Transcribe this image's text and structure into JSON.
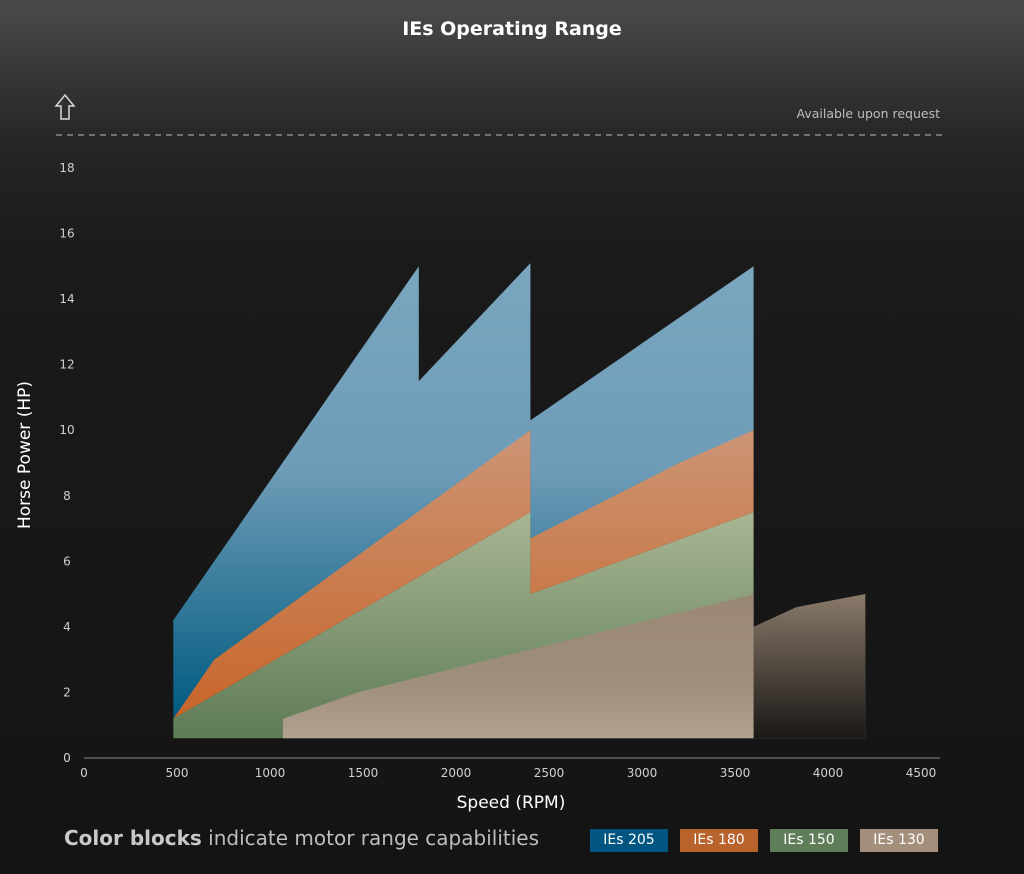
{
  "chart_data": {
    "type": "area",
    "title": "IEs Operating Range",
    "xlabel": "Speed (RPM)",
    "ylabel": "Horse Power (HP)",
    "xlim": [
      0,
      4500
    ],
    "ylim": [
      0,
      18
    ],
    "xticks": [
      0,
      500,
      1000,
      1500,
      2000,
      2500,
      3000,
      3500,
      4000,
      4500
    ],
    "yticks": [
      0,
      2,
      4,
      6,
      8,
      10,
      12,
      14,
      16,
      18
    ],
    "annotation": "Available upon request",
    "grid": false,
    "legend_placement": "bottom",
    "legend_caption_bold": "Color blocks",
    "legend_caption_rest": "indicate motor range capabilities",
    "series": [
      {
        "name": "IEs 205",
        "color": "#005a82",
        "color_light": "#78a3bc",
        "upper": [
          [
            480,
            4.2
          ],
          [
            1800,
            15.0
          ],
          [
            1800,
            11.5
          ],
          [
            2400,
            15.1
          ],
          [
            2400,
            10.3
          ],
          [
            3600,
            15.0
          ]
        ],
        "lower": [
          [
            480,
            1.2
          ],
          [
            2400,
            10.0
          ],
          [
            2400,
            6.7
          ],
          [
            3600,
            10.0
          ]
        ]
      },
      {
        "name": "IEs 180",
        "color": "#c86a32",
        "color_light": "#c89070",
        "upper": [
          [
            480,
            1.2
          ],
          [
            700,
            3.0
          ],
          [
            2400,
            10.0
          ],
          [
            2400,
            6.7
          ],
          [
            3200,
            9.0
          ],
          [
            3600,
            10.0
          ]
        ],
        "lower": [
          [
            480,
            1.2
          ],
          [
            2400,
            7.5
          ],
          [
            2400,
            5.0
          ],
          [
            3600,
            7.5
          ]
        ]
      },
      {
        "name": "IEs 150",
        "color": "#6e8a6a",
        "color_light": "#9aaa8a",
        "upper": [
          [
            480,
            1.2
          ],
          [
            2400,
            7.5
          ],
          [
            2400,
            5.0
          ],
          [
            3600,
            7.5
          ]
        ],
        "lower": [
          [
            480,
            0.6
          ],
          [
            3600,
            0.6
          ]
        ]
      },
      {
        "name": "IEs 130",
        "color": "#b5a494",
        "color_light": "#a89482",
        "upper": [
          [
            1070,
            1.2
          ],
          [
            1470,
            2.0
          ],
          [
            3600,
            5.0
          ],
          [
            3600,
            4.0
          ],
          [
            3830,
            4.6
          ],
          [
            4200,
            5.0
          ]
        ],
        "lower": [
          [
            1070,
            0.6
          ],
          [
            4200,
            0.6
          ]
        ]
      }
    ]
  },
  "legend": [
    {
      "label": "IEs 205",
      "color": "#005680"
    },
    {
      "label": "IEs 180",
      "color": "#b8622c"
    },
    {
      "label": "IEs 150",
      "color": "#5f7d58"
    },
    {
      "label": "IEs 130",
      "color": "#a48f7c"
    }
  ]
}
